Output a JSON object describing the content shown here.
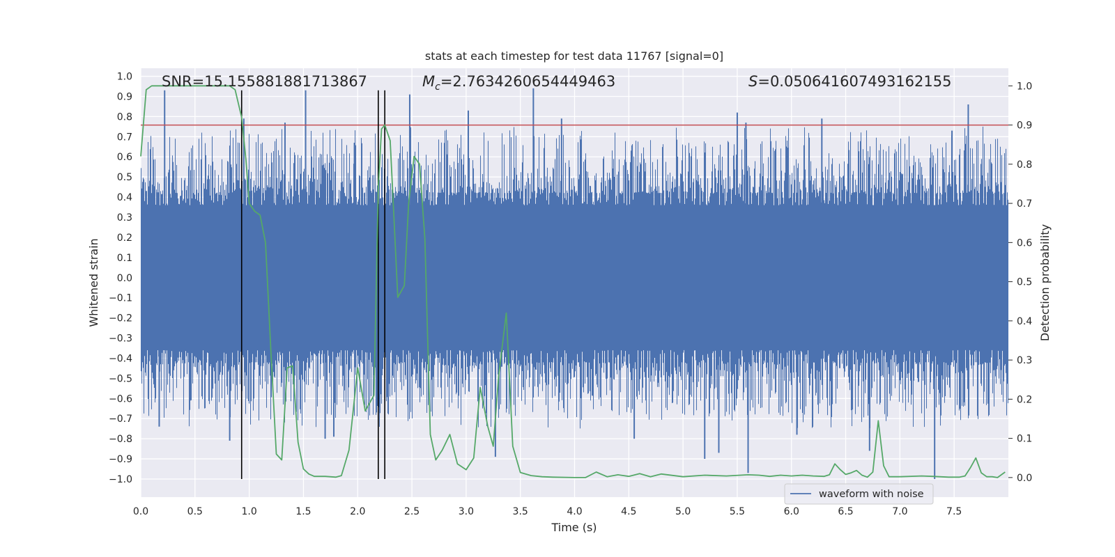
{
  "chart_data": {
    "type": "line",
    "title": "stats at each timestep for test data 11767 [signal=0]",
    "xlabel": "Time (s)",
    "ylabel_left": "Whitened strain",
    "ylabel_right": "Detection probability",
    "xlim": [
      0.0,
      8.0
    ],
    "ylim_left": [
      -1.09,
      1.04
    ],
    "ylim_right": [
      -0.05,
      1.045
    ],
    "x_ticks": [
      0.0,
      0.5,
      1.0,
      1.5,
      2.0,
      2.5,
      3.0,
      3.5,
      4.0,
      4.5,
      5.0,
      5.5,
      6.0,
      6.5,
      7.0,
      7.5
    ],
    "x_tick_labels": [
      "0.0",
      "0.5",
      "1.0",
      "1.5",
      "2.0",
      "2.5",
      "3.0",
      "3.5",
      "4.0",
      "4.5",
      "5.0",
      "5.5",
      "6.0",
      "6.5",
      "7.0",
      "7.5"
    ],
    "y_left_ticks": [
      -1.0,
      -0.9,
      -0.8,
      -0.7,
      -0.6,
      -0.5,
      -0.4,
      -0.3,
      -0.2,
      -0.1,
      0.0,
      0.1,
      0.2,
      0.3,
      0.4,
      0.5,
      0.6,
      0.7,
      0.8,
      0.9,
      1.0
    ],
    "y_left_tick_labels": [
      "−1.0",
      "−0.9",
      "−0.8",
      "−0.7",
      "−0.6",
      "−0.5",
      "−0.4",
      "−0.3",
      "−0.2",
      "−0.1",
      "0.0",
      "0.1",
      "0.2",
      "0.3",
      "0.4",
      "0.5",
      "0.6",
      "0.7",
      "0.8",
      "0.9",
      "1.0"
    ],
    "y_right_ticks": [
      0.0,
      0.1,
      0.2,
      0.3,
      0.4,
      0.5,
      0.6,
      0.7,
      0.8,
      0.9,
      1.0
    ],
    "y_right_tick_labels": [
      "0.0",
      "0.1",
      "0.2",
      "0.3",
      "0.4",
      "0.5",
      "0.6",
      "0.7",
      "0.8",
      "0.9",
      "1.0"
    ],
    "annotations": {
      "snr": "SNR=15.155881881713867",
      "mc_symbol": "M",
      "mc_sub": "c",
      "mc_value": "=2.7634260654449463",
      "s_symbol": "S",
      "s_value": "=0.050641607493162155"
    },
    "threshold_right": 0.9,
    "vertical_lines_x": [
      0.93,
      2.19,
      2.25
    ],
    "vertical_lines_range_left": [
      -1.0,
      0.93
    ],
    "legend": {
      "label": "waveform with noise",
      "placement": "lower-right"
    },
    "waveform": {
      "name": "waveform with noise",
      "duration_s": 8.0,
      "typical_envelope": [
        -0.42,
        0.42
      ],
      "noise_seed": 11767,
      "spikes": [
        {
          "x": 0.22,
          "y": 0.93
        },
        {
          "x": 0.95,
          "y": 0.79
        },
        {
          "x": 1.33,
          "y": 0.77
        },
        {
          "x": 1.52,
          "y": 0.93
        },
        {
          "x": 1.97,
          "y": 0.67
        },
        {
          "x": 2.48,
          "y": 0.91
        },
        {
          "x": 3.02,
          "y": 0.83
        },
        {
          "x": 3.62,
          "y": 0.94
        },
        {
          "x": 3.88,
          "y": 0.79
        },
        {
          "x": 5.5,
          "y": 0.82
        },
        {
          "x": 5.58,
          "y": 0.77
        },
        {
          "x": 6.28,
          "y": 0.79
        },
        {
          "x": 7.48,
          "y": 0.73
        },
        {
          "x": 7.63,
          "y": 0.86
        },
        {
          "x": 0.17,
          "y": -0.74
        },
        {
          "x": 0.82,
          "y": -0.81
        },
        {
          "x": 1.7,
          "y": -0.8
        },
        {
          "x": 1.78,
          "y": -0.79
        },
        {
          "x": 3.27,
          "y": -0.89
        },
        {
          "x": 4.55,
          "y": -0.8
        },
        {
          "x": 5.2,
          "y": -0.9
        },
        {
          "x": 5.33,
          "y": -0.87
        },
        {
          "x": 5.6,
          "y": -0.97
        },
        {
          "x": 6.05,
          "y": -0.78
        },
        {
          "x": 6.72,
          "y": -0.86
        },
        {
          "x": 7.32,
          "y": -1.0
        }
      ]
    },
    "series": [
      {
        "name": "detection probability",
        "axis": "right",
        "color": "#55a868",
        "x": [
          0.0,
          0.05,
          0.1,
          0.15,
          0.25,
          0.4,
          0.6,
          0.75,
          0.82,
          0.87,
          0.93,
          0.97,
          1.0,
          1.05,
          1.1,
          1.15,
          1.2,
          1.25,
          1.3,
          1.35,
          1.4,
          1.45,
          1.5,
          1.55,
          1.6,
          1.7,
          1.8,
          1.85,
          1.92,
          2.0,
          2.07,
          2.15,
          2.19,
          2.22,
          2.25,
          2.3,
          2.33,
          2.37,
          2.43,
          2.47,
          2.52,
          2.57,
          2.62,
          2.67,
          2.72,
          2.78,
          2.85,
          2.92,
          3.0,
          3.07,
          3.13,
          3.2,
          3.25,
          3.3,
          3.37,
          3.43,
          3.5,
          3.6,
          3.7,
          3.8,
          4.0,
          4.1,
          4.2,
          4.3,
          4.4,
          4.5,
          4.6,
          4.7,
          4.8,
          5.0,
          5.2,
          5.4,
          5.6,
          5.7,
          5.8,
          5.9,
          6.0,
          6.1,
          6.2,
          6.3,
          6.35,
          6.4,
          6.45,
          6.5,
          6.55,
          6.6,
          6.65,
          6.7,
          6.75,
          6.8,
          6.85,
          6.9,
          7.0,
          7.2,
          7.3,
          7.45,
          7.55,
          7.6,
          7.65,
          7.7,
          7.75,
          7.8,
          7.85,
          7.9,
          7.97
        ],
        "y": [
          0.82,
          0.99,
          1.0,
          1.0,
          1.0,
          1.0,
          1.0,
          1.0,
          1.0,
          0.99,
          0.92,
          0.81,
          0.7,
          0.68,
          0.67,
          0.6,
          0.32,
          0.06,
          0.045,
          0.28,
          0.285,
          0.09,
          0.022,
          0.009,
          0.003,
          0.003,
          0.001,
          0.005,
          0.07,
          0.28,
          0.17,
          0.21,
          0.74,
          0.89,
          0.9,
          0.86,
          0.69,
          0.46,
          0.49,
          0.7,
          0.82,
          0.8,
          0.61,
          0.11,
          0.045,
          0.07,
          0.11,
          0.035,
          0.02,
          0.05,
          0.23,
          0.13,
          0.08,
          0.26,
          0.42,
          0.08,
          0.013,
          0.005,
          0.002,
          0.001,
          0.0,
          0.0,
          0.014,
          0.002,
          0.007,
          0.003,
          0.01,
          0.002,
          0.009,
          0.002,
          0.006,
          0.004,
          0.007,
          0.006,
          0.003,
          0.006,
          0.004,
          0.006,
          0.004,
          0.003,
          0.007,
          0.035,
          0.02,
          0.008,
          0.012,
          0.018,
          0.006,
          0.001,
          0.014,
          0.145,
          0.03,
          0.002,
          0.002,
          0.004,
          0.003,
          0.001,
          0.001,
          0.004,
          0.025,
          0.05,
          0.012,
          0.002,
          0.002,
          0.0,
          0.014
        ]
      }
    ],
    "colors": {
      "plot_background": "#eaeaf2",
      "grid": "#ffffff",
      "waveform": "#4c72b0",
      "probability": "#55a868",
      "threshold": "#c44e52",
      "vertical_lines": "#000000",
      "text": "#262626"
    }
  }
}
